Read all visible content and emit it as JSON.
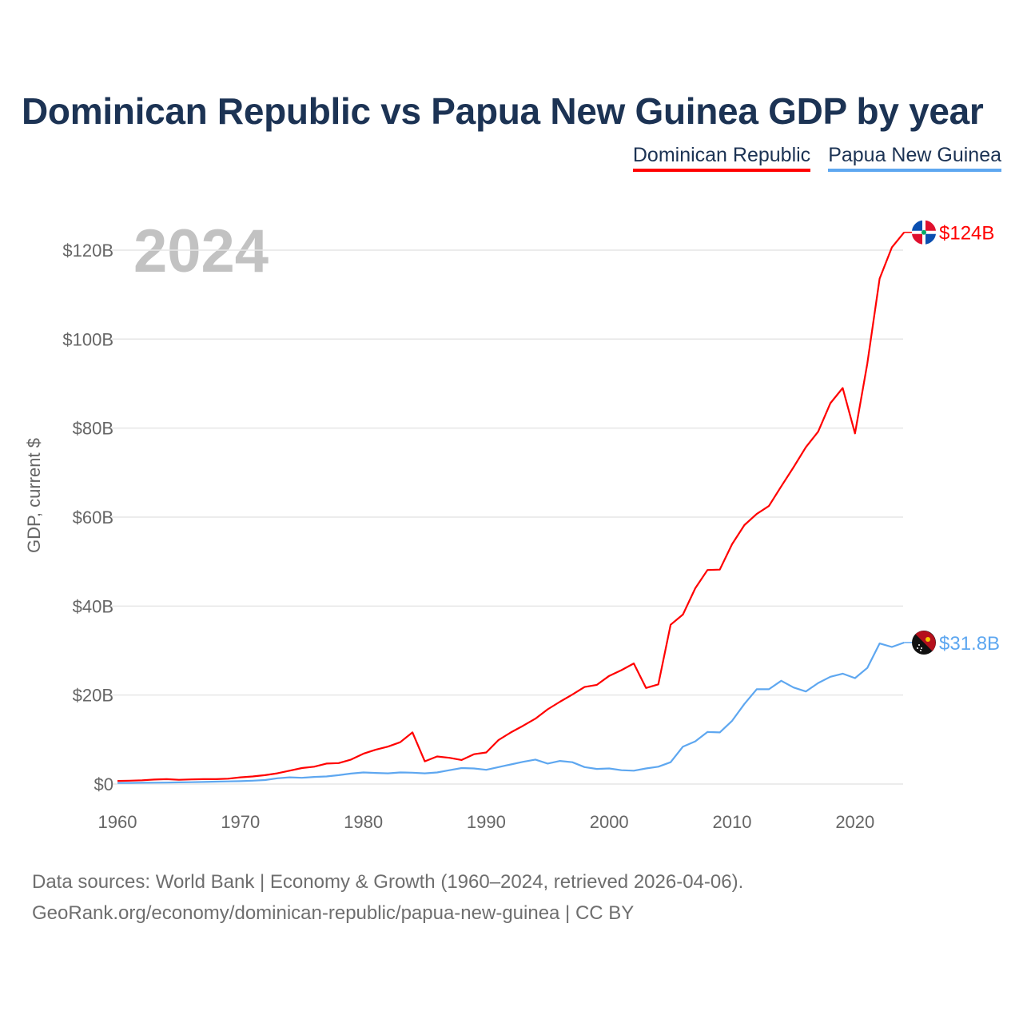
{
  "chart_data": {
    "type": "line",
    "title": "Dominican Republic vs Papua New Guinea GDP by year",
    "ylabel": "GDP, current $",
    "xlabel": "",
    "year_label": "2024",
    "xlim": [
      1960,
      2024
    ],
    "ylim": [
      0,
      130
    ],
    "x_ticks": [
      1960,
      1970,
      1980,
      1990,
      2000,
      2010,
      2020
    ],
    "y_ticks": [
      0,
      20,
      40,
      60,
      80,
      100,
      120
    ],
    "y_tick_labels": [
      "$0",
      "$20B",
      "$40B",
      "$60B",
      "$80B",
      "$100B",
      "$120B"
    ],
    "grid": true,
    "legend_position": "top-right",
    "units": "billion USD",
    "x": [
      1960,
      1961,
      1962,
      1963,
      1964,
      1965,
      1966,
      1967,
      1968,
      1969,
      1970,
      1971,
      1972,
      1973,
      1974,
      1975,
      1976,
      1977,
      1978,
      1979,
      1980,
      1981,
      1982,
      1983,
      1984,
      1985,
      1986,
      1987,
      1988,
      1989,
      1990,
      1991,
      1992,
      1993,
      1994,
      1995,
      1996,
      1997,
      1998,
      1999,
      2000,
      2001,
      2002,
      2003,
      2004,
      2005,
      2006,
      2007,
      2008,
      2009,
      2010,
      2011,
      2012,
      2013,
      2014,
      2015,
      2016,
      2017,
      2018,
      2019,
      2020,
      2021,
      2022,
      2023,
      2024
    ],
    "series": [
      {
        "name": "Dominican Republic",
        "color": "#ff0000",
        "end_label": "$124B",
        "values": [
          0.7,
          0.75,
          0.85,
          1.0,
          1.1,
          0.95,
          1.05,
          1.1,
          1.1,
          1.2,
          1.5,
          1.7,
          2.0,
          2.4,
          3.0,
          3.6,
          3.9,
          4.6,
          4.7,
          5.5,
          6.8,
          7.7,
          8.4,
          9.4,
          11.6,
          5.1,
          6.2,
          5.9,
          5.4,
          6.7,
          7.1,
          9.9,
          11.6,
          13.1,
          14.7,
          16.8,
          18.5,
          20.1,
          21.8,
          22.3,
          24.3,
          25.6,
          27.1,
          21.6,
          22.4,
          35.8,
          38.1,
          44.0,
          48.1,
          48.2,
          53.9,
          58.2,
          60.7,
          62.5,
          66.9,
          71.2,
          75.7,
          79.2,
          85.6,
          89.0,
          78.8,
          94.5,
          113.6,
          120.6,
          124.0
        ]
      },
      {
        "name": "Papua New Guinea",
        "color": "#5ea7f0",
        "end_label": "$31.8B",
        "values": [
          0.23,
          0.25,
          0.28,
          0.3,
          0.33,
          0.37,
          0.42,
          0.47,
          0.53,
          0.59,
          0.65,
          0.75,
          0.9,
          1.3,
          1.5,
          1.4,
          1.6,
          1.7,
          2.0,
          2.35,
          2.6,
          2.5,
          2.4,
          2.6,
          2.55,
          2.4,
          2.6,
          3.1,
          3.6,
          3.5,
          3.2,
          3.8,
          4.4,
          5.0,
          5.5,
          4.6,
          5.2,
          4.9,
          3.8,
          3.4,
          3.5,
          3.1,
          3.0,
          3.5,
          3.9,
          4.9,
          8.4,
          9.6,
          11.7,
          11.6,
          14.2,
          18.0,
          21.3,
          21.3,
          23.2,
          21.7,
          20.8,
          22.7,
          24.1,
          24.8,
          23.8,
          26.1,
          31.6,
          30.8,
          31.8
        ]
      }
    ],
    "source_lines": [
      "Data sources: World Bank | Economy & Growth (1960–2024, retrieved 2026-04-06).",
      "GeoRank.org/economy/dominican-republic/papua-new-guinea | CC BY"
    ]
  }
}
